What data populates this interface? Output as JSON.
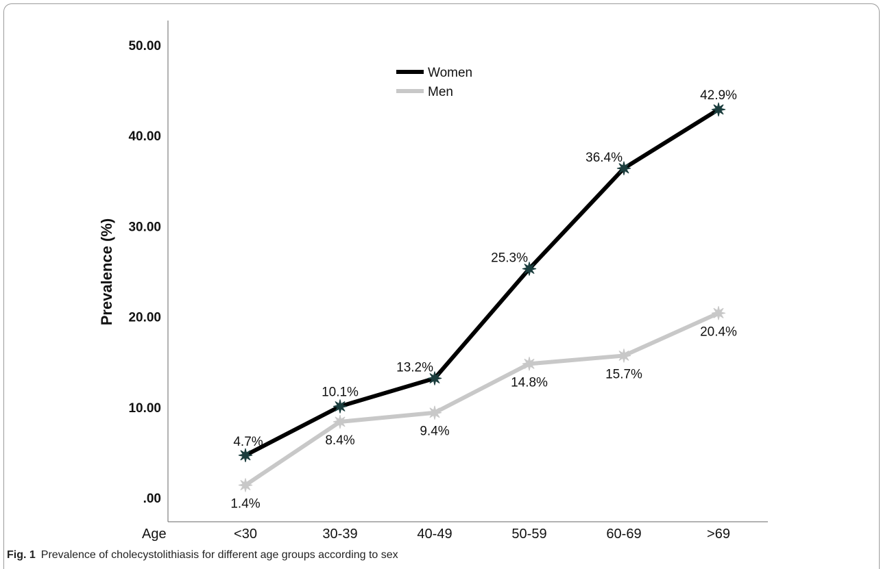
{
  "chart_data": {
    "type": "line",
    "xlabel": "Age",
    "ylabel": "Prevalence (%)",
    "ylim": [
      0,
      50
    ],
    "y_ticks": [
      {
        "value": 0,
        "label": ".00"
      },
      {
        "value": 10,
        "label": "10.00"
      },
      {
        "value": 20,
        "label": "20.00"
      },
      {
        "value": 30,
        "label": "30.00"
      },
      {
        "value": 40,
        "label": "40.00"
      },
      {
        "value": 50,
        "label": "50.00"
      }
    ],
    "categories": [
      "<30",
      "30-39",
      "40-49",
      "50-59",
      "60-69",
      ">69"
    ],
    "series": [
      {
        "name": "Women",
        "color": "#000000",
        "marker_color": "#1b3d3d",
        "values": [
          4.7,
          10.1,
          13.2,
          25.3,
          36.4,
          42.9
        ],
        "labels": [
          "4.7%",
          "10.1%",
          "13.2%",
          "25.3%",
          "36.4%",
          "42.9%"
        ],
        "label_position": "above"
      },
      {
        "name": "Men",
        "color": "#c8c8c8",
        "marker_color": "#c8c8c8",
        "values": [
          1.4,
          8.4,
          9.4,
          14.8,
          15.7,
          20.4
        ],
        "labels": [
          "1.4%",
          "8.4%",
          "9.4%",
          "14.8%",
          "15.7%",
          "20.4%"
        ],
        "label_position": "below"
      }
    ],
    "legend_position": "top-left",
    "grid": false
  },
  "caption": {
    "label": "Fig. 1",
    "text": "Prevalence of cholecystolithiasis for different age groups according to sex"
  }
}
